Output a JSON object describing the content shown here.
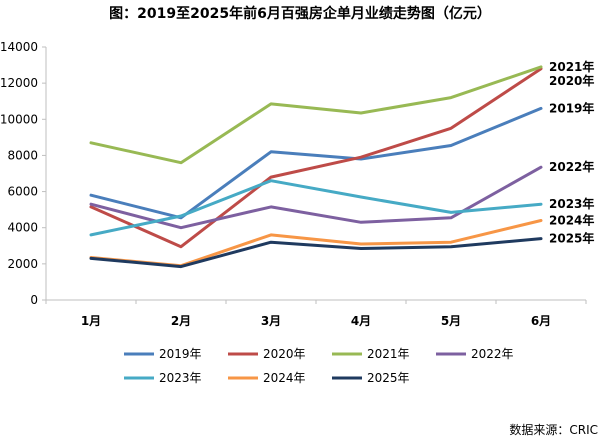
{
  "chart_data": {
    "type": "line",
    "title": "图：2019至2025年前6月百强房企单月业绩走势图（亿元）",
    "categories": [
      "1月",
      "2月",
      "3月",
      "4月",
      "5月",
      "6月"
    ],
    "ylim": [
      0,
      14000
    ],
    "yticks": [
      0,
      2000,
      4000,
      6000,
      8000,
      10000,
      12000,
      14000
    ],
    "grid": false,
    "legend_position": "bottom",
    "series": [
      {
        "name": "2019年",
        "color": "#4a7ebb",
        "values": [
          5800,
          4550,
          8200,
          7800,
          8550,
          10600
        ],
        "end_label": "2019年"
      },
      {
        "name": "2020年",
        "color": "#be4b48",
        "values": [
          5150,
          2950,
          6800,
          7900,
          9500,
          12800
        ],
        "end_label": "2020年"
      },
      {
        "name": "2021年",
        "color": "#98b954",
        "values": [
          8700,
          7600,
          10850,
          10350,
          11200,
          12900
        ],
        "end_label": "2021年"
      },
      {
        "name": "2022年",
        "color": "#7d60a0",
        "values": [
          5300,
          4000,
          5150,
          4300,
          4550,
          7350
        ],
        "end_label": "2022年"
      },
      {
        "name": "2023年",
        "color": "#46aac5",
        "values": [
          3600,
          4650,
          6600,
          5700,
          4850,
          5300
        ],
        "end_label": "2023年"
      },
      {
        "name": "2024年",
        "color": "#f79646",
        "values": [
          2350,
          1900,
          3600,
          3100,
          3200,
          4400
        ],
        "end_label": "2024年"
      },
      {
        "name": "2025年",
        "color": "#1f3a5f",
        "values": [
          2300,
          1850,
          3200,
          2850,
          2950,
          3400
        ],
        "end_label": "2025年"
      }
    ]
  },
  "source": "数据来源：CRIC"
}
